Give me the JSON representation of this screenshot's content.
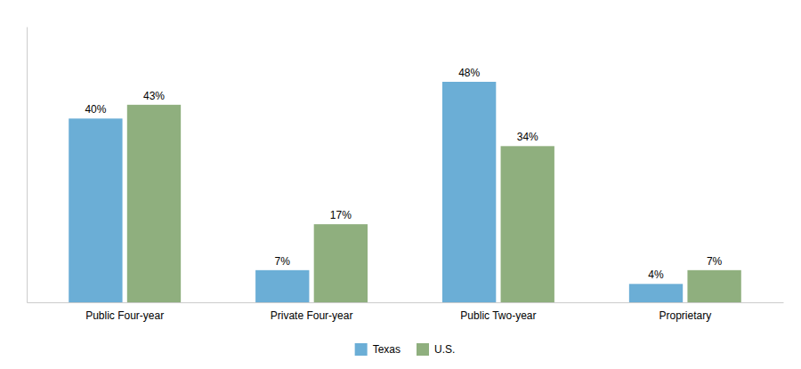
{
  "chart_data": {
    "type": "bar",
    "categories": [
      "Public Four-year",
      "Private Four-year",
      "Public Two-year",
      "Proprietary"
    ],
    "series": [
      {
        "name": "Texas",
        "color": "#6BAED6",
        "values": [
          40,
          7,
          48,
          4
        ],
        "value_labels": [
          "40%",
          "7%",
          "48%",
          "4%"
        ]
      },
      {
        "name": "U.S.",
        "color": "#8FAF7E",
        "values": [
          43,
          17,
          34,
          7
        ],
        "value_labels": [
          "43%",
          "17%",
          "34%",
          "7%"
        ]
      }
    ],
    "ylim": [
      0,
      60
    ],
    "grid": false,
    "legend": "bottom",
    "data_labels": true,
    "tick_labels": "x"
  }
}
